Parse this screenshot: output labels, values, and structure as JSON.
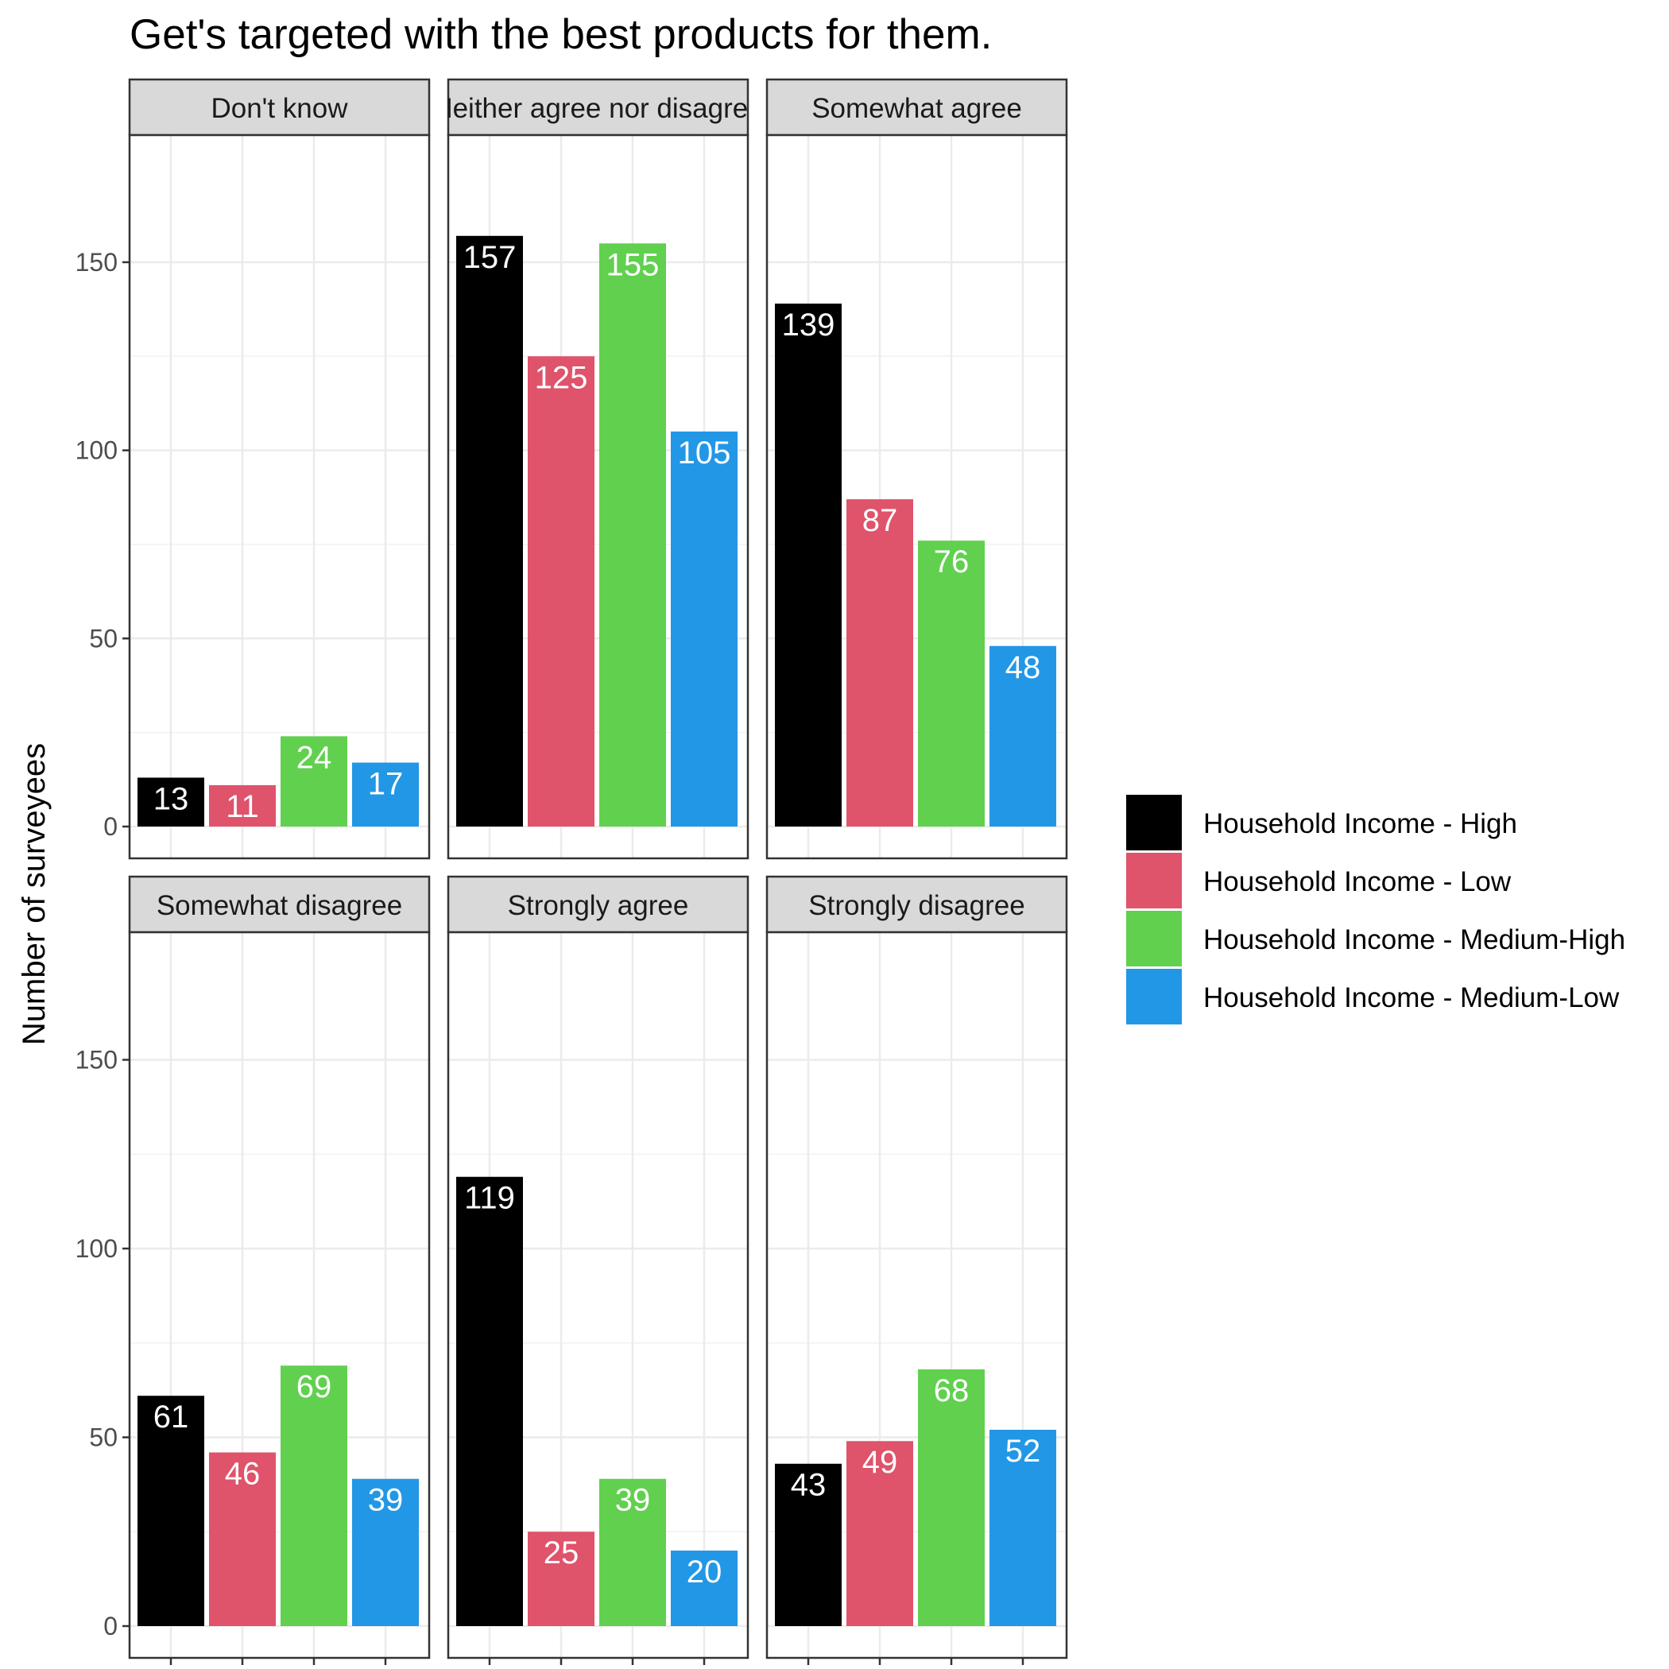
{
  "chart_data": {
    "type": "bar",
    "title": "Get's targeted with the best products for them.",
    "xlabel": "",
    "ylabel": "Number of surveyees",
    "ylim": [
      0,
      170
    ],
    "yticks": [
      0,
      50,
      100,
      150
    ],
    "grid": true,
    "legend_position": "right",
    "facets": [
      {
        "label": "Don't know",
        "values": [
          13,
          11,
          24,
          17
        ]
      },
      {
        "label": "Neither agree nor disagree",
        "values": [
          157,
          125,
          155,
          105
        ]
      },
      {
        "label": "Somewhat agree",
        "values": [
          139,
          87,
          76,
          48
        ]
      },
      {
        "label": "Somewhat disagree",
        "values": [
          61,
          46,
          69,
          39
        ]
      },
      {
        "label": "Strongly agree",
        "values": [
          119,
          25,
          39,
          20
        ]
      },
      {
        "label": "Strongly disagree",
        "values": [
          43,
          49,
          68,
          52
        ]
      }
    ],
    "series": [
      {
        "name": "Household Income - High",
        "color": "#000000"
      },
      {
        "name": "Household Income - Low",
        "color": "#DF536B"
      },
      {
        "name": "Household Income - Medium-High",
        "color": "#61D04F"
      },
      {
        "name": "Household Income - Medium-Low",
        "color": "#2297E6"
      }
    ]
  }
}
